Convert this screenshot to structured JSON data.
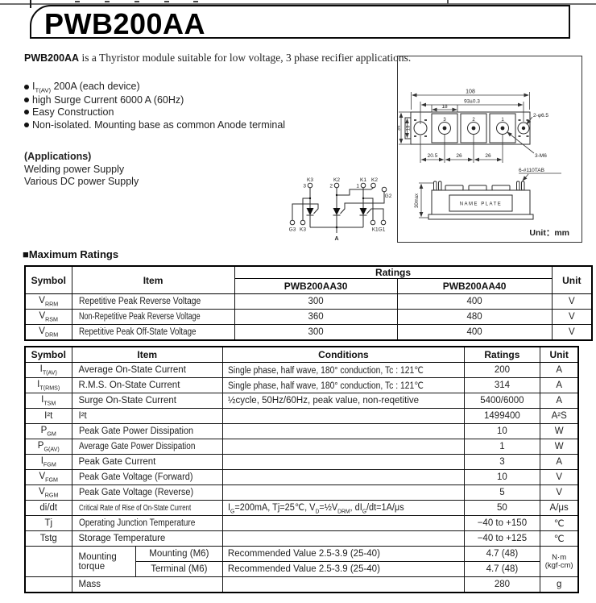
{
  "page": {
    "title": "PWB200AA",
    "intro_lead": "PWB200AA",
    "intro_rest": " is a Thyristor module suitable for low voltage, 3 phase recifier applications.",
    "features": [
      "I~T(AV)~ 200A (each device)",
      "high Surge Current 6000 A (60Hz)",
      "Easy Construction",
      "Non-isolated. Mounting base as common Anode terminal"
    ],
    "applications_title": "(Applications)",
    "applications": [
      "Welding power Supply",
      "Various DC power Supply"
    ],
    "ratings_heading": "■Maximum Ratings"
  },
  "circuit": {
    "k3": "K3",
    "k2": "K2",
    "k1": "K1",
    "k2b": "K2",
    "g2": "G2",
    "g3": "G3",
    "k3b": "K3",
    "k1g1": "K1G1",
    "a": "A",
    "n3": "3",
    "n2": "2",
    "n1": "1"
  },
  "drawing": {
    "d108": "108",
    "d93": "93±0.3",
    "d18": "18",
    "n3": "3",
    "n2": "2",
    "n1": "1",
    "d34": "34",
    "d13": "13",
    "d205": "20.5",
    "d26a": "26",
    "d26b": "26",
    "c_holes": "2-φ6.5",
    "c_m6": "3-M6",
    "c_tab": "6-#110TAB",
    "d30": "30max",
    "nameplate": "NAME PLATE",
    "unit": "Unit：mm"
  },
  "table1": {
    "h_symbol": "Symbol",
    "h_item": "Item",
    "h_ratings": "Ratings",
    "h_m30": "PWB200AA30",
    "h_m40": "PWB200AA40",
    "h_unit": "Unit",
    "rows": [
      {
        "sym": "V~RRM~",
        "item": "Repetitive Peak Reverse Voltage",
        "v30": "300",
        "v40": "400",
        "unit": "V"
      },
      {
        "sym": "V~RSM~",
        "item": "Non-Repetitive Peak Reverse Voltage",
        "v30": "360",
        "v40": "480",
        "unit": "V"
      },
      {
        "sym": "V~DRM~",
        "item": "Repetitive Peak Off-State Voltage",
        "v30": "300",
        "v40": "400",
        "unit": "V"
      }
    ]
  },
  "table2": {
    "h_symbol": "Symbol",
    "h_item": "Item",
    "h_cond": "Conditions",
    "h_ratings": "Ratings",
    "h_unit": "Unit",
    "rows": [
      {
        "sym": "I~T(AV)~",
        "item": "Average On-State Current",
        "cond": "Single phase, half wave, 180° conduction, Tc : 121℃",
        "rating": "200",
        "unit": "A"
      },
      {
        "sym": "I~T(RMS)~",
        "item": "R.M.S. On-State Current",
        "cond": "Single phase, half wave, 180° conduction, Tc : 121℃",
        "rating": "314",
        "unit": "A"
      },
      {
        "sym": "I~TSM~",
        "item": "Surge On-State Current",
        "cond": "½cycle, 50Hz/60Hz, peak value, non-reqetitive",
        "rating": "5400/6000",
        "unit": "A"
      },
      {
        "sym": "I²t",
        "item": "I²t",
        "cond": "",
        "rating": "1499400",
        "unit": "A²S"
      },
      {
        "sym": "P~GM~",
        "item": "Peak Gate Power Dissipation",
        "cond": "",
        "rating": "10",
        "unit": "W"
      },
      {
        "sym": "P~G(AV)~",
        "item": "Average Gate Power Dissipation",
        "cond": "",
        "rating": "1",
        "unit": "W"
      },
      {
        "sym": "I~FGM~",
        "item": "Peak Gate Current",
        "cond": "",
        "rating": "3",
        "unit": "A"
      },
      {
        "sym": "V~FGM~",
        "item": "Peak Gate Voltage (Forward)",
        "cond": "",
        "rating": "10",
        "unit": "V"
      },
      {
        "sym": "V~RGM~",
        "item": "Peak Gate Voltage (Reverse)",
        "cond": "",
        "rating": "5",
        "unit": "V"
      },
      {
        "sym": "di/dt",
        "item": "Critical Rate of Rise of On-State Current",
        "cond": "I~G~=200mA, Tj=25℃, V~D~=½V~DRM~, dI~G~/dt=1A/μs",
        "rating": "50",
        "unit": "A/μs"
      },
      {
        "sym": "Tj",
        "item": "Operating Junction Temperature",
        "cond": "",
        "rating": "−40 to +150",
        "unit": "℃"
      },
      {
        "sym": "Tstg",
        "item": "Storage Temperature",
        "cond": "",
        "rating": "−40 to +125",
        "unit": "℃"
      }
    ],
    "torque": {
      "group": "Mounting torque",
      "r1": {
        "item": "Mounting (M6)",
        "cond": "Recommended Value 2.5-3.9 (25-40)",
        "rating": "4.7 (48)"
      },
      "r2": {
        "item": "Terminal (M6)",
        "cond": "Recommended Value 2.5-3.9 (25-40)",
        "rating": "4.7 (48)"
      },
      "unit1": "N·m",
      "unit2": "(kgf·cm)"
    },
    "mass": {
      "item": "Mass",
      "cond": "",
      "rating": "280",
      "unit": "g"
    }
  }
}
